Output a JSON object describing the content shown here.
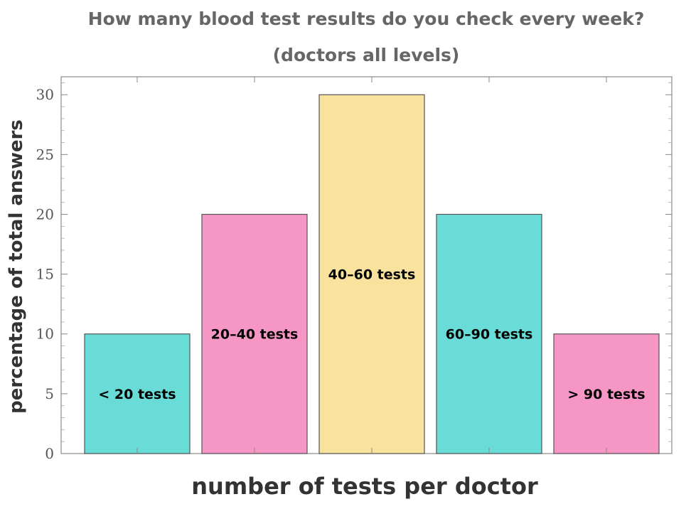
{
  "chart_data": {
    "type": "bar",
    "title": "How many blood test results do you check every week?",
    "subtitle": "(doctors all levels)",
    "xlabel": "number of tests per doctor",
    "ylabel": "percentage of total answers",
    "ylim": [
      0,
      31.5
    ],
    "yticks": [
      "0",
      "5",
      "10",
      "15",
      "20",
      "25",
      "30"
    ],
    "categories": [
      "< 20 tests",
      "20–40 tests",
      "40–60 tests",
      "60–90 tests",
      "> 90 tests"
    ],
    "values": [
      10,
      20,
      30,
      20,
      10
    ],
    "colors": [
      "#6adcd8",
      "#f596c4",
      "#f9e19e",
      "#6adcd8",
      "#f596c4"
    ],
    "grid": false,
    "legend": "none"
  }
}
